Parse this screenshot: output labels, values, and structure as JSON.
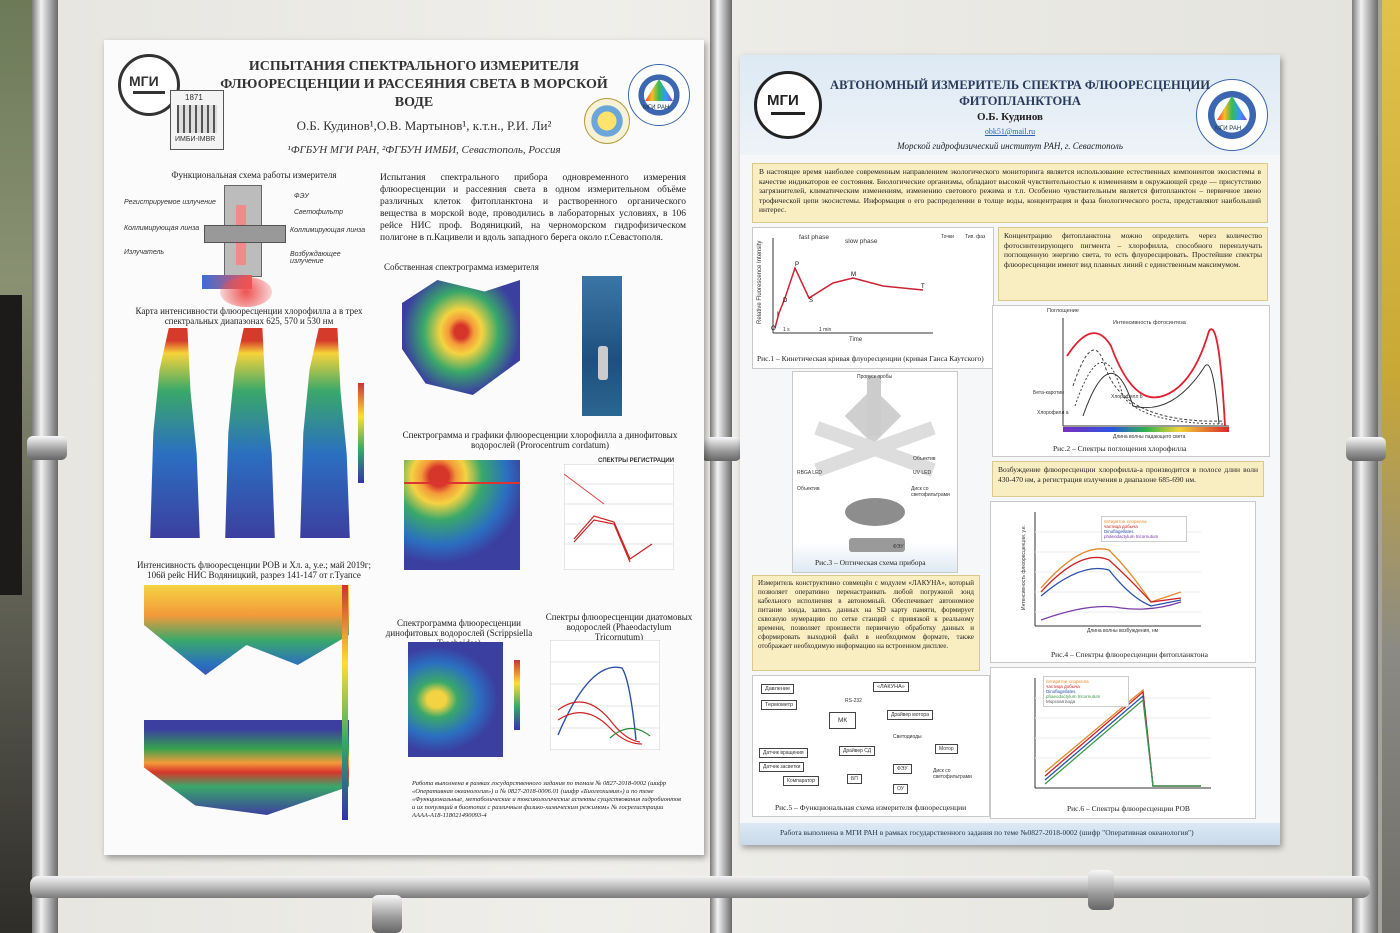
{
  "poster_left": {
    "title": "ИСПЫТАНИЯ СПЕКТРАЛЬНОГО ИЗМЕРИТЕЛЯ ФЛЮОРЕСЦЕНЦИИ И РАССЕЯНИЯ СВЕТА В МОРСКОЙ ВОДЕ",
    "authors": "О.Б. Кудинов¹,О.В. Мартынов¹, к.т.н., Р.И. Ли²",
    "affiliation": "¹ФГБУН МГИ РАН, ²ФГБУН ИМБИ, Севастополь, Россия",
    "logo_year": "1871",
    "logo_text": "ИМБИ-IMBR",
    "logo_mgi": "МГИ",
    "logo_ras": "МГИ РАН",
    "scheme_title": "Функциональная схема работы измерителя",
    "scheme_labels": [
      "Регистрируемое излучение",
      "ФЭУ",
      "Светофильтр",
      "Коллимирующая линза",
      "Коллимирующая линза",
      "Излучатель",
      "Возбуждающее излучение"
    ],
    "intro": "Испытания спектрального прибора одновременного измерения флюоресценции и рассеяния света в одном измерительном объёме различных клеток фитопланктона и растворенного органического вещества в морской воде, проводились в лабораторных условиях, в 106 рейсе НИС проф. Водяницкий, на черноморском гидрофизическом полигоне в п.Кацивели и вдоль западного берега около г.Севастополя.",
    "map_title": "Карта интенсивности флюоресценции хлорофилла a в трех спектральных диапазонах 625, 570 и 530 нм",
    "own_spectrogram": "Собственная спектрограмма измерителя",
    "section_title": "Интенсивность флюоресценции РОВ и Хл. a, у.е.; май 2019г; 106й рейс НИС Водяницкий, разрез 141-147 от г.Туапсе",
    "chl_title": "Спектрограмма и графики флюоресценции хлорофилла a динофитовых водорослей (Prorocentrum cordatum)",
    "reg_label": "СПЕКТРЫ РЕГИСТРАЦИИ",
    "dino_title": "Спектрограмма флюоресценции динофитовых водорослей (Scrippsiella Trochoidea)",
    "diatom_title": "Спектры флюоресценции диатомовых водорослей (Phaeodactylum Tricornutum)",
    "funding": "Работа выполнена в рамках государственного задания по темам № 0827-2018-0002 (шифр «Оперативная океанология») и № 0827-2018-0006.01 (шифр «Биогеохимия») и по теме «Функциональные, метаболические и токсикологические аспекты существования гидробионтов и их популяций в биотопах с различным физико-химическим режимом» № госрегистрации АААА-А18-118021490093-4"
  },
  "poster_right": {
    "title": "АВТОНОМНЫЙ ИЗМЕРИТЕЛЬ СПЕКТРА ФЛЮОРЕСЦЕНЦИИ ФИТОПЛАНКТОНА",
    "author": "О.Б. Кудинов",
    "email": "obk51@mail.ru",
    "institute": "Морской гидрофизический институт РАН, г. Севастополь",
    "logo_mgi": "МГИ",
    "logo_ras": "МГИ РАН",
    "intro": "В настоящее время наиболее современным направлением экологического мониторинга является использование естественных компонентов экосистемы в качестве индикаторов ее состояния. Биологические организмы, обладают высокой чувствительностью к изменениям в окружающей среде — присутствию загрязнителей, климатическим изменениям, изменению светового режима и т.п. Особенно чувствительным является фитопланктон – первичное звено трофической цепи экосистемы. Информация о его распределении в толще воды, концентрация и фаза биологического роста, представляют наибольший интерес.",
    "concentration": "Концентрацию фитопланктона можно определить через количество фотосинтезирующего пигмента – хлорофилла, способного переизлучать поглощенную энергию света, то есть флуоресцировать. Простейшие спектры флюоресценции имеют вид плавных линий с единственным максимумом.",
    "fig1_caption": "Рис.1 – Кинетическая кривая флуоресценции (кривая Ганса Каутского)",
    "fig1_labels": [
      "fast phase",
      "slow phase",
      "Relative Fluorescence Intensity",
      "Time",
      "1 s",
      "1 min",
      "Точки",
      "Тип. фаз"
    ],
    "fig1_points": [
      "O",
      "I",
      "D",
      "P",
      "S",
      "M",
      "T"
    ],
    "fig2_caption": "Рис.2 – Спектры поглощения хлорофилла",
    "fig2_labels": [
      "Поглощение",
      "Интенсивность фотосинтеза",
      "Бета-каротин",
      "Хлорофилл a",
      "Хлорофилл b",
      "Длина волны падающего света"
    ],
    "excitation": "Возбуждение флюоресценции хлорофилла-a производится в полосе длин волн 430-470 нм, а регистрация излучения в диапазоне 685-690 нм.",
    "fig3_caption": "Рис.3 – Оптическая схема прибора",
    "fig3_labels": [
      "Пропуск пробы",
      "RBGA LED",
      "UV LED",
      "Объектив",
      "Объектив",
      "Диск со светофильтрами",
      "ФЭУ"
    ],
    "fig4_caption": "Рис.4 – Спектры флюоресценции фитопланктона",
    "fig4_legend": [
      "пятирятое хлорелла",
      "частица добыча",
      "Dinoflagellates",
      "phaeodactylum tricornutum"
    ],
    "fig4_xlabel": "Длина волны возбуждения, нм",
    "fig4_ylabel": "Интенсивность флюоресценции, у.е.",
    "lakuna": "Измеритель конструктивно совмещён с модулем «ЛАКУНА», который позволяет оперативно перенастраивать любой погружной зонд кабельного исполнения в автономный. Обеспечивает автономное питание зонда, запись данных на SD карту памяти, формирует сквозную нумерацию по сетке станций с привязкой к реальному времени, позволяет произвести первичную обработку данных и сформировать выходной файл в необходимом формате, также отображает необходимую информацию на встроенном дисплее.",
    "fig5_caption": "Рис.5 – Функциональная схема измерителя флюоресценции",
    "fig5_blocks": [
      "Давление",
      "Термометр",
      "«ЛАКУНА»",
      "RS-232",
      "МК",
      "Драйвер мотора",
      "Датчик вращения",
      "Датчик засветки",
      "Драйвер СД",
      "Светодиоды",
      "Мотор",
      "Компаратор",
      "БП",
      "ФЭУ",
      "ОУ",
      "Диск со светофильтрами"
    ],
    "fig6_caption": "Рис.6 – Спектры флюоресценции РОВ",
    "fig6_legend": [
      "пятирятое хлорелла",
      "частица добыча",
      "Dinoflagellates",
      "phaeodactylum tricornutum",
      "Морская вода"
    ],
    "funding": "Работа выполнена в МГИ РАН в рамках государственного задания по теме №0827-2018-0002 (шифр \"Оперативная океанология\")"
  },
  "colors": {
    "poster_bg": "#fbfbfb",
    "yellow_box": "#f9eec2",
    "title_blue": "#2a3a5a",
    "heat_blue": "#3b3fa0",
    "heat_red": "#d6362a"
  }
}
